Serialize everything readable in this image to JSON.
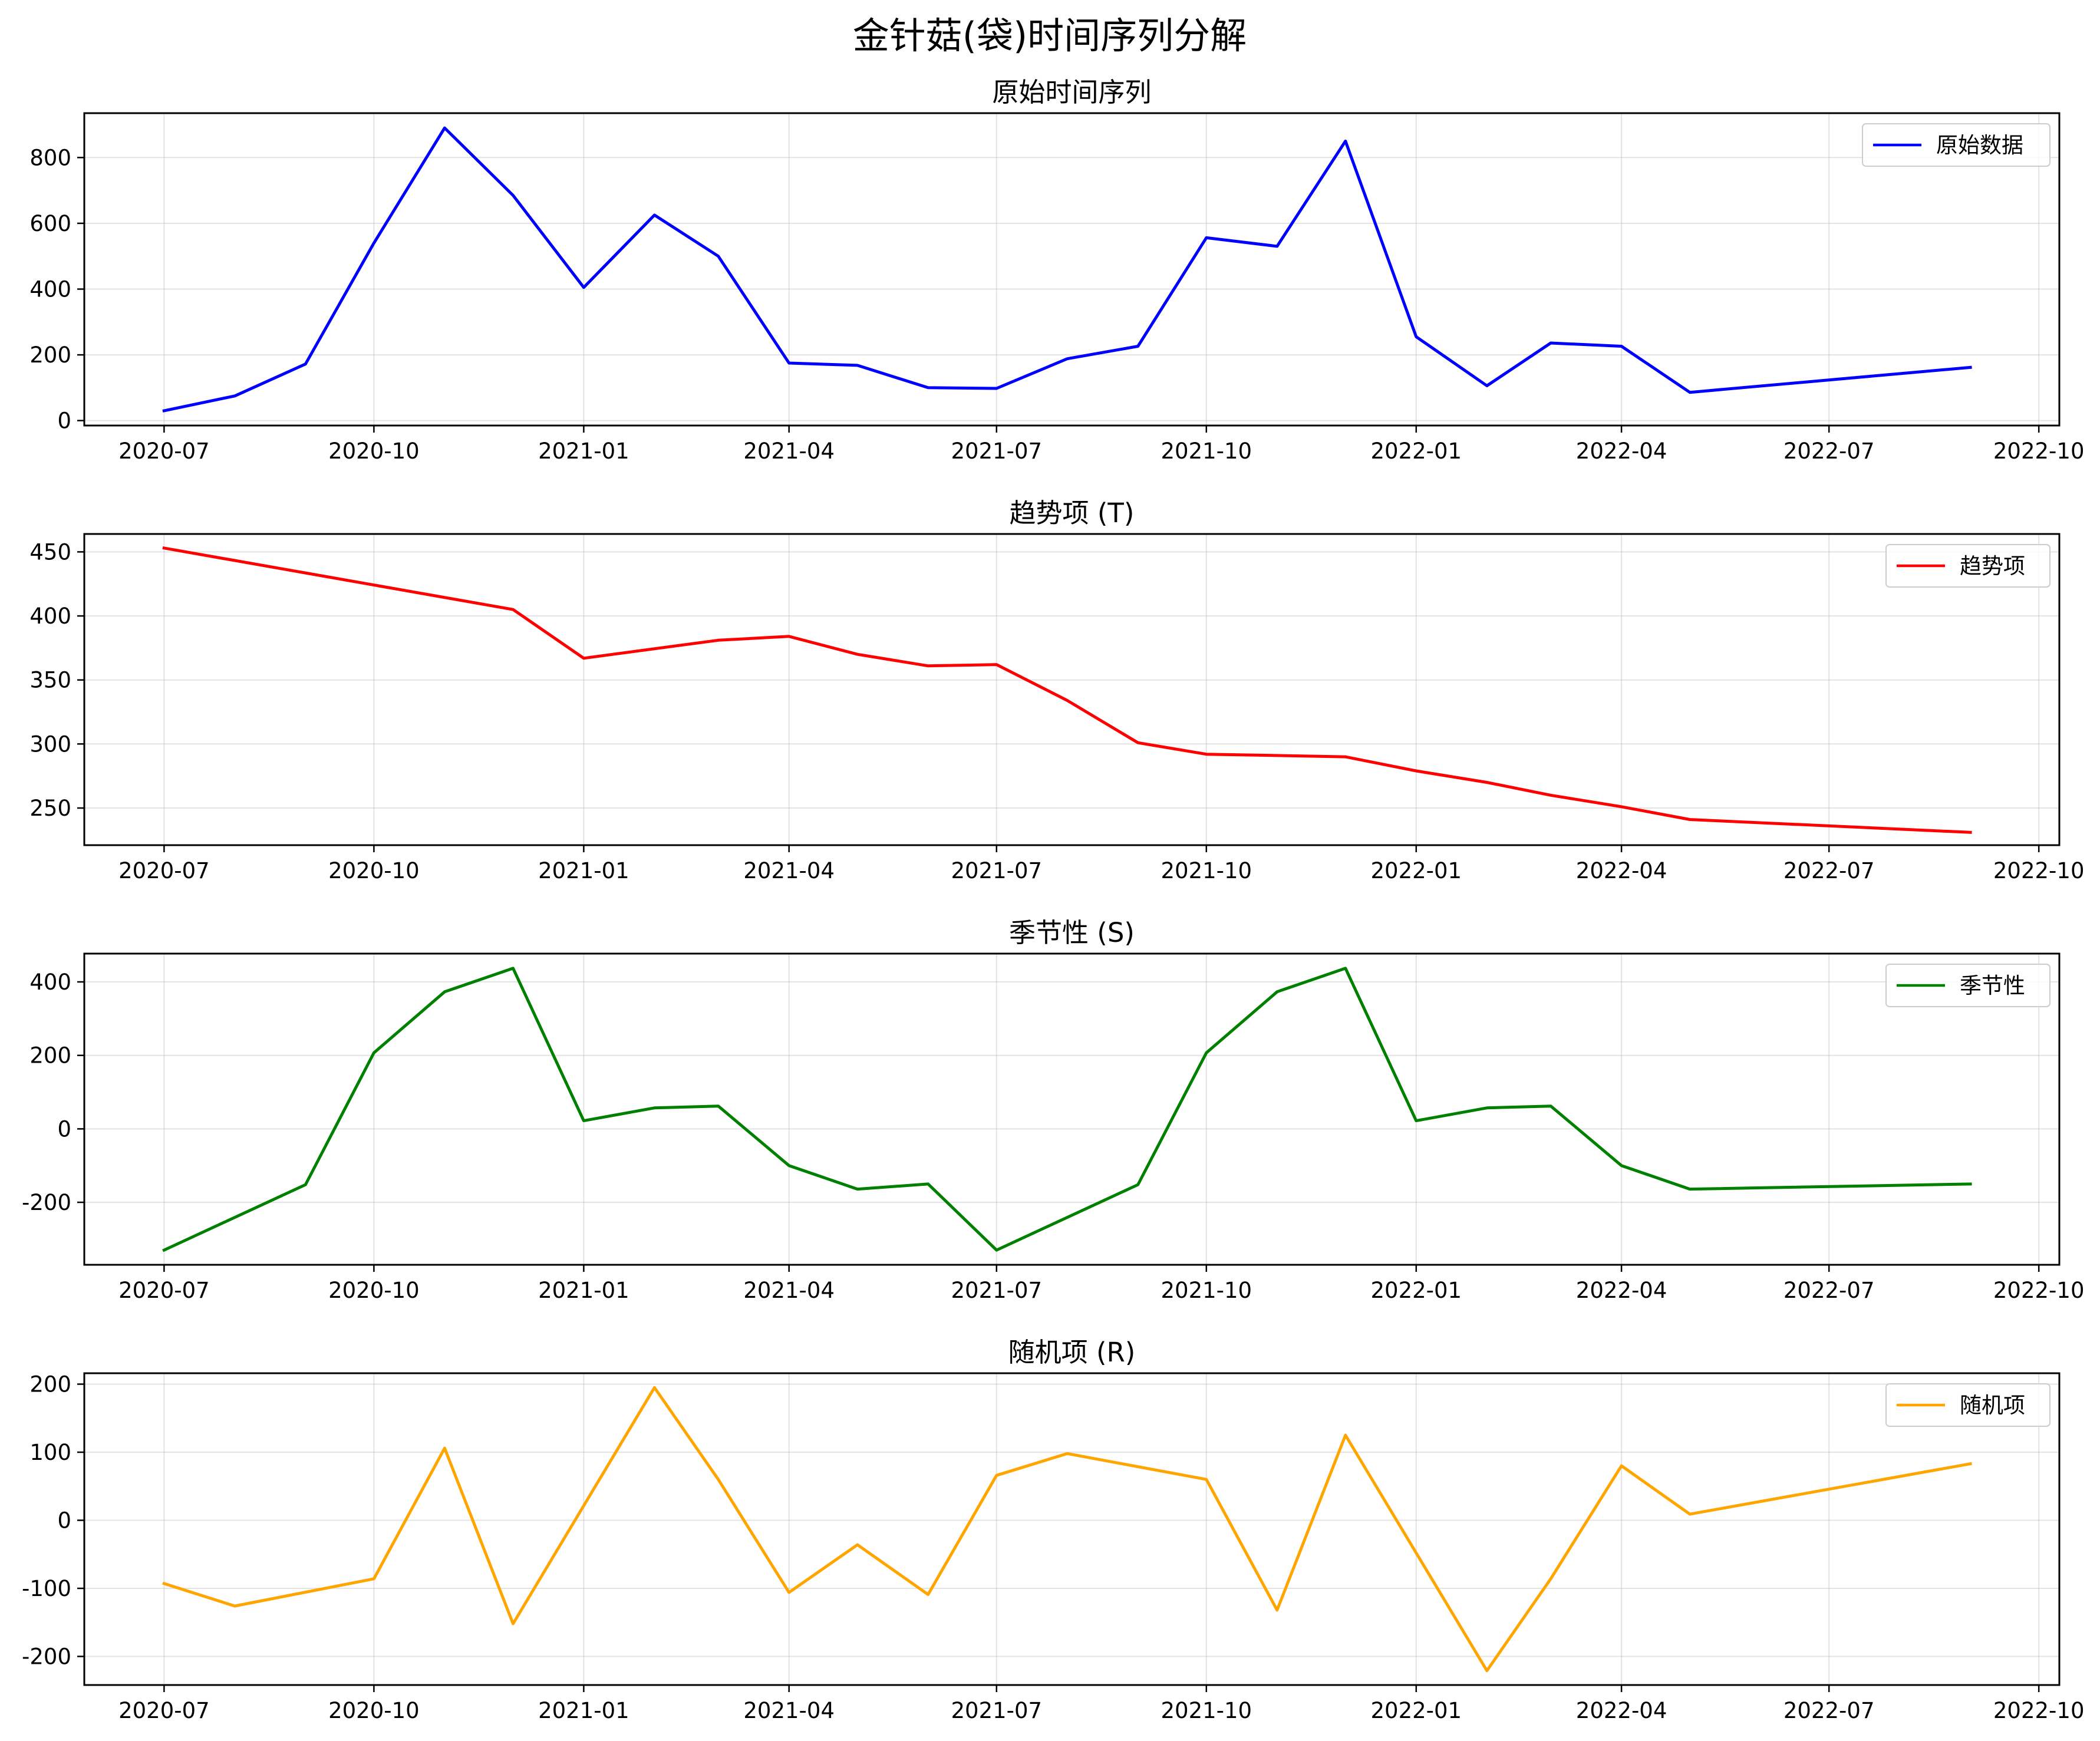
{
  "figure": {
    "title": "金针菇(袋)时间序列分解"
  },
  "chart_data": [
    {
      "type": "line",
      "title": "原始时间序列",
      "xlabel": "",
      "ylabel": "",
      "x": [
        "2020-07",
        "2020-08",
        "2020-09",
        "2020-10",
        "2020-11",
        "2020-12",
        "2021-01",
        "2021-02",
        "2021-03",
        "2021-04",
        "2021-05",
        "2021-06",
        "2021-07",
        "2021-08",
        "2021-09",
        "2021-10",
        "2021-11",
        "2021-12",
        "2022-01",
        "2022-02",
        "2022-03",
        "2022-04",
        "2022-05",
        "2022-09"
      ],
      "series": [
        {
          "name": "原始数据",
          "color": "#0000ff",
          "values": [
            30,
            75,
            172,
            540,
            890,
            685,
            405,
            625,
            500,
            175,
            168,
            100,
            98,
            188,
            226,
            556,
            530,
            850,
            255,
            106,
            236,
            226,
            86,
            162
          ]
        }
      ],
      "xticks": [
        "2020-07",
        "2020-10",
        "2021-01",
        "2021-04",
        "2021-07",
        "2021-10",
        "2022-01",
        "2022-04",
        "2022-07",
        "2022-10"
      ],
      "yticks": [
        0,
        200,
        400,
        600,
        800
      ],
      "xlim": [
        "2020-05-27",
        "2022-10-10"
      ],
      "ylim": [
        -15,
        935
      ],
      "grid": true,
      "legend": "top-right"
    },
    {
      "type": "line",
      "title": "趋势项 (T)",
      "xlabel": "",
      "ylabel": "",
      "x": [
        "2020-07",
        "2020-12",
        "2021-01",
        "2021-03",
        "2021-04",
        "2021-05",
        "2021-06",
        "2021-07",
        "2021-08",
        "2021-09",
        "2021-10",
        "2021-12",
        "2022-01",
        "2022-02",
        "2022-03",
        "2022-04",
        "2022-05",
        "2022-09"
      ],
      "series": [
        {
          "name": "趋势项",
          "color": "#ff0000",
          "values": [
            453,
            405,
            367,
            381,
            384,
            370,
            361,
            362,
            334,
            301,
            292,
            290,
            279,
            270,
            260,
            251,
            241,
            231
          ]
        }
      ],
      "xticks": [
        "2020-07",
        "2020-10",
        "2021-01",
        "2021-04",
        "2021-07",
        "2021-10",
        "2022-01",
        "2022-04",
        "2022-07",
        "2022-10"
      ],
      "yticks": [
        250,
        300,
        350,
        400,
        450
      ],
      "xlim": [
        "2020-05-27",
        "2022-10-10"
      ],
      "ylim": [
        221,
        464
      ],
      "grid": true,
      "legend": "top-right"
    },
    {
      "type": "line",
      "title": "季节性 (S)",
      "xlabel": "",
      "ylabel": "",
      "x": [
        "2020-07",
        "2020-09",
        "2020-10",
        "2020-11",
        "2020-12",
        "2021-01",
        "2021-02",
        "2021-03",
        "2021-04",
        "2021-05",
        "2021-06",
        "2021-07",
        "2021-09",
        "2021-10",
        "2021-11",
        "2021-12",
        "2022-01",
        "2022-02",
        "2022-03",
        "2022-04",
        "2022-05",
        "2022-09"
      ],
      "series": [
        {
          "name": "季节性",
          "color": "#008000",
          "values": [
            -330,
            -152,
            207,
            373,
            437,
            22,
            57,
            62,
            -100,
            -164,
            -150,
            -330,
            -152,
            207,
            373,
            437,
            22,
            57,
            62,
            -100,
            -164,
            -150
          ]
        }
      ],
      "xticks": [
        "2020-07",
        "2020-10",
        "2021-01",
        "2021-04",
        "2021-07",
        "2021-10",
        "2022-01",
        "2022-04",
        "2022-07",
        "2022-10"
      ],
      "yticks": [
        -200,
        0,
        200,
        400
      ],
      "xlim": [
        "2020-05-27",
        "2022-10-10"
      ],
      "ylim": [
        -370,
        477
      ],
      "grid": true,
      "legend": "top-right"
    },
    {
      "type": "line",
      "title": "随机项 (R)",
      "xlabel": "",
      "ylabel": "",
      "x": [
        "2020-07",
        "2020-08",
        "2020-10",
        "2020-11",
        "2020-12",
        "2021-02",
        "2021-03",
        "2021-04",
        "2021-05",
        "2021-06",
        "2021-07",
        "2021-08",
        "2021-10",
        "2021-11",
        "2021-12",
        "2022-02",
        "2022-03",
        "2022-04",
        "2022-05",
        "2022-09"
      ],
      "series": [
        {
          "name": "随机项",
          "color": "#ffa500",
          "values": [
            -93,
            -126,
            -86,
            106,
            -152,
            195,
            60,
            -106,
            -36,
            -109,
            66,
            98,
            60,
            -132,
            125,
            -221,
            -86,
            80,
            9,
            83
          ]
        }
      ],
      "xticks": [
        "2020-07",
        "2020-10",
        "2021-01",
        "2021-04",
        "2021-07",
        "2021-10",
        "2022-01",
        "2022-04",
        "2022-07",
        "2022-10"
      ],
      "yticks": [
        -200,
        -100,
        0,
        100,
        200
      ],
      "xlim": [
        "2020-05-27",
        "2022-10-10"
      ],
      "ylim": [
        -242,
        216
      ],
      "grid": true,
      "legend": "top-right"
    }
  ]
}
